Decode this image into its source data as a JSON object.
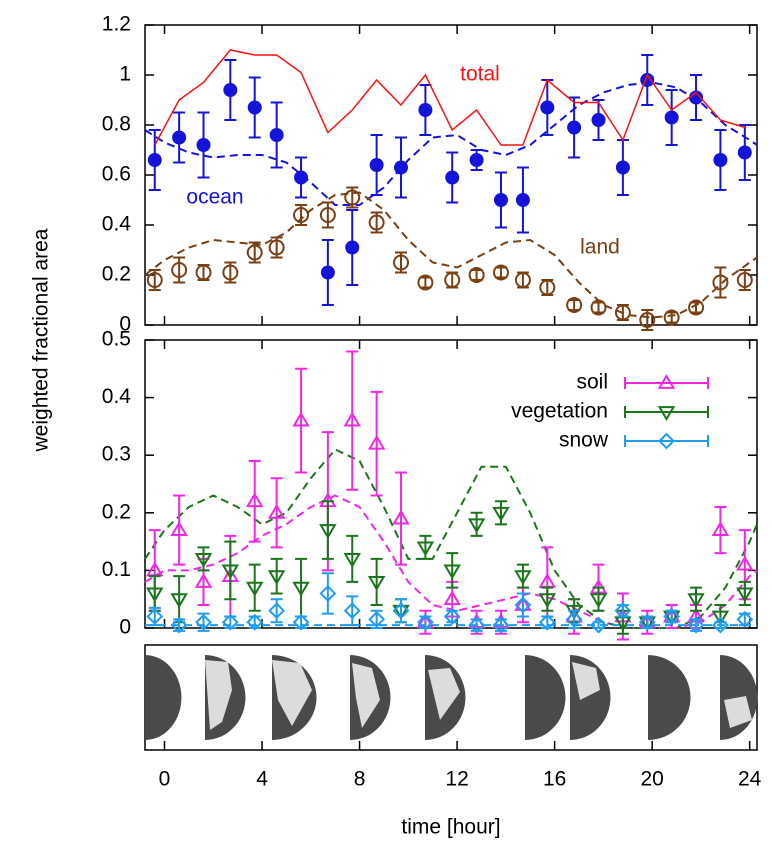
{
  "chart_data": [
    {
      "type": "scatter",
      "ylabel": "weighted fractional area",
      "xlim": [
        -0.8,
        24.3
      ],
      "ylim": [
        0,
        1.2
      ],
      "xticks": [
        0,
        4,
        8,
        12,
        16,
        20,
        24
      ],
      "yticks": [
        0,
        0.2,
        0.4,
        0.6,
        0.8,
        1,
        1.2
      ],
      "x": [
        -0.4,
        0.6,
        1.6,
        2.7,
        3.7,
        4.6,
        5.6,
        6.7,
        7.7,
        8.7,
        9.7,
        10.7,
        11.8,
        12.8,
        13.8,
        14.7,
        15.7,
        16.8,
        17.8,
        18.8,
        19.8,
        20.8,
        21.8,
        22.8,
        23.8
      ],
      "series": [
        {
          "name": "ocean",
          "color": "#1414d8",
          "marker": "filled-circle",
          "values": [
            0.66,
            0.75,
            0.72,
            0.94,
            0.87,
            0.76,
            0.59,
            0.21,
            0.31,
            0.64,
            0.63,
            0.86,
            0.59,
            0.66,
            0.5,
            0.5,
            0.87,
            0.79,
            0.82,
            0.63,
            0.98,
            0.83,
            0.91,
            0.66,
            0.69
          ],
          "errors": [
            0.12,
            0.1,
            0.13,
            0.12,
            0.12,
            0.13,
            0.08,
            0.13,
            0.15,
            0.12,
            0.12,
            0.1,
            0.1,
            0.04,
            0.11,
            0.13,
            0.11,
            0.12,
            0.08,
            0.11,
            0.1,
            0.11,
            0.09,
            0.12,
            0.11
          ]
        },
        {
          "name": "land",
          "color": "#7a3f12",
          "marker": "open-circle",
          "values": [
            0.18,
            0.22,
            0.21,
            0.21,
            0.29,
            0.31,
            0.44,
            0.44,
            0.51,
            0.41,
            0.25,
            0.17,
            0.18,
            0.2,
            0.21,
            0.18,
            0.15,
            0.08,
            0.07,
            0.05,
            0.02,
            0.03,
            0.07,
            0.17,
            0.18
          ],
          "errors": [
            0.04,
            0.05,
            0.03,
            0.04,
            0.04,
            0.04,
            0.04,
            0.05,
            0.04,
            0.04,
            0.04,
            0.02,
            0.03,
            0.02,
            0.02,
            0.03,
            0.03,
            0.02,
            0.02,
            0.03,
            0.04,
            0.02,
            0.02,
            0.06,
            0.04
          ]
        },
        {
          "name": "total",
          "color": "#ff1010",
          "marker": "line",
          "values": [
            0.72,
            0.9,
            0.97,
            1.1,
            1.08,
            1.08,
            1.01,
            0.77,
            0.86,
            0.98,
            0.88,
            1.0,
            0.78,
            0.86,
            0.72,
            0.72,
            0.98,
            0.89,
            0.89,
            0.74,
            1.0,
            0.86,
            0.93,
            0.82,
            0.79
          ]
        }
      ],
      "fit_x": [
        -0.8,
        0,
        1,
        2,
        3,
        4,
        5,
        6,
        7,
        8,
        9,
        10,
        11,
        12,
        13,
        14,
        15,
        16,
        17,
        18,
        19,
        20,
        21,
        22,
        23,
        24,
        24.3
      ],
      "fits": [
        {
          "color": "#1414d8",
          "values": [
            0.78,
            0.73,
            0.69,
            0.67,
            0.68,
            0.68,
            0.65,
            0.57,
            0.48,
            0.48,
            0.55,
            0.66,
            0.75,
            0.76,
            0.7,
            0.68,
            0.72,
            0.8,
            0.88,
            0.93,
            0.96,
            0.97,
            0.95,
            0.89,
            0.8,
            0.74,
            0.72
          ]
        },
        {
          "color": "#7a3f12",
          "values": [
            0.2,
            0.26,
            0.31,
            0.34,
            0.33,
            0.32,
            0.37,
            0.46,
            0.52,
            0.53,
            0.46,
            0.34,
            0.25,
            0.23,
            0.28,
            0.33,
            0.34,
            0.28,
            0.17,
            0.08,
            0.04,
            0.03,
            0.04,
            0.09,
            0.18,
            0.25,
            0.27
          ]
        }
      ]
    },
    {
      "type": "scatter",
      "xlabel": "time [hour]",
      "xlim": [
        -0.8,
        24.3
      ],
      "ylim": [
        0,
        0.5
      ],
      "xticks": [
        0,
        4,
        8,
        12,
        16,
        20,
        24
      ],
      "yticks": [
        0,
        0.1,
        0.2,
        0.3,
        0.4,
        0.5
      ],
      "legend": "upper right",
      "x": [
        -0.4,
        0.6,
        1.6,
        2.7,
        3.7,
        4.6,
        5.6,
        6.7,
        7.7,
        8.7,
        9.7,
        10.7,
        11.8,
        12.8,
        13.8,
        14.7,
        15.7,
        16.8,
        17.8,
        18.8,
        19.8,
        20.8,
        21.8,
        22.8,
        23.8
      ],
      "series": [
        {
          "name": "soil",
          "color": "#f028e6",
          "marker": "triangle-up",
          "values": [
            0.1,
            0.17,
            0.08,
            0.09,
            0.22,
            0.2,
            0.36,
            0.22,
            0.36,
            0.32,
            0.19,
            0.01,
            0.05,
            0.01,
            0.01,
            0.04,
            0.08,
            0.02,
            0.07,
            0.02,
            0.01,
            0.02,
            0.02,
            0.17,
            0.11
          ],
          "errors": [
            0.07,
            0.06,
            0.04,
            0.07,
            0.07,
            0.06,
            0.09,
            0.12,
            0.12,
            0.09,
            0.08,
            0.02,
            0.03,
            0.02,
            0.02,
            0.03,
            0.06,
            0.03,
            0.04,
            0.04,
            0.02,
            0.02,
            0.02,
            0.04,
            0.06
          ]
        },
        {
          "name": "vegetation",
          "color": "#1a761a",
          "marker": "triangle-down",
          "values": [
            0.06,
            0.05,
            0.12,
            0.1,
            0.07,
            0.09,
            0.07,
            0.17,
            0.12,
            0.08,
            0.03,
            0.14,
            0.1,
            0.18,
            0.2,
            0.09,
            0.05,
            0.03,
            0.05,
            0.01,
            0.01,
            0.02,
            0.05,
            0.02,
            0.06
          ],
          "errors": [
            0.03,
            0.04,
            0.02,
            0.05,
            0.04,
            0.03,
            0.05,
            0.05,
            0.04,
            0.04,
            0.02,
            0.02,
            0.03,
            0.02,
            0.02,
            0.02,
            0.02,
            0.02,
            0.02,
            0.02,
            0.01,
            0.01,
            0.02,
            0.02,
            0.02
          ]
        },
        {
          "name": "snow",
          "color": "#1e9cf0",
          "marker": "diamond",
          "values": [
            0.02,
            0.005,
            0.01,
            0.01,
            0.01,
            0.03,
            0.01,
            0.06,
            0.03,
            0.015,
            0.03,
            0.01,
            0.02,
            0.005,
            0.005,
            0.04,
            0.01,
            0.015,
            0.005,
            0.03,
            0.01,
            0.02,
            0.005,
            0.005,
            0.015
          ],
          "errors": [
            0.015,
            0.01,
            0.015,
            0.01,
            0.01,
            0.02,
            0.01,
            0.035,
            0.025,
            0.015,
            0.02,
            0.01,
            0.01,
            0.01,
            0.01,
            0.02,
            0.01,
            0.015,
            0.005,
            0.01,
            0.01,
            0.01,
            0.01,
            0.005,
            0.01
          ]
        }
      ],
      "fit_x": [
        -0.8,
        0,
        1,
        2,
        3,
        4,
        5,
        6,
        7,
        8,
        9,
        10,
        11,
        12,
        13,
        14,
        15,
        16,
        17,
        18,
        19,
        20,
        21,
        22,
        23,
        24,
        24.3
      ],
      "fits": [
        {
          "color": "#f028e6",
          "values": [
            0.08,
            0.1,
            0.1,
            0.11,
            0.13,
            0.16,
            0.18,
            0.21,
            0.23,
            0.21,
            0.15,
            0.08,
            0.04,
            0.03,
            0.04,
            0.05,
            0.06,
            0.05,
            0.03,
            0.01,
            0,
            0,
            0,
            0.01,
            0.04,
            0.09,
            0.1
          ]
        },
        {
          "color": "#1a761a",
          "values": [
            0.12,
            0.17,
            0.21,
            0.23,
            0.21,
            0.18,
            0.2,
            0.26,
            0.31,
            0.29,
            0.21,
            0.12,
            0.12,
            0.2,
            0.28,
            0.28,
            0.2,
            0.1,
            0.04,
            0.01,
            0,
            0,
            0,
            0.02,
            0.07,
            0.15,
            0.18
          ]
        },
        {
          "color": "#1e9cf0",
          "values": [
            0.005,
            0.005,
            0.005,
            0.005,
            0.005,
            0.005,
            0.005,
            0.005,
            0.005,
            0.005,
            0.005,
            0.005,
            0.005,
            0.005,
            0.005,
            0.005,
            0.005,
            0.005,
            0.005,
            0.005,
            0.005,
            0.005,
            0.005,
            0.005,
            0.005,
            0.005,
            0.005
          ]
        }
      ]
    }
  ]
}
